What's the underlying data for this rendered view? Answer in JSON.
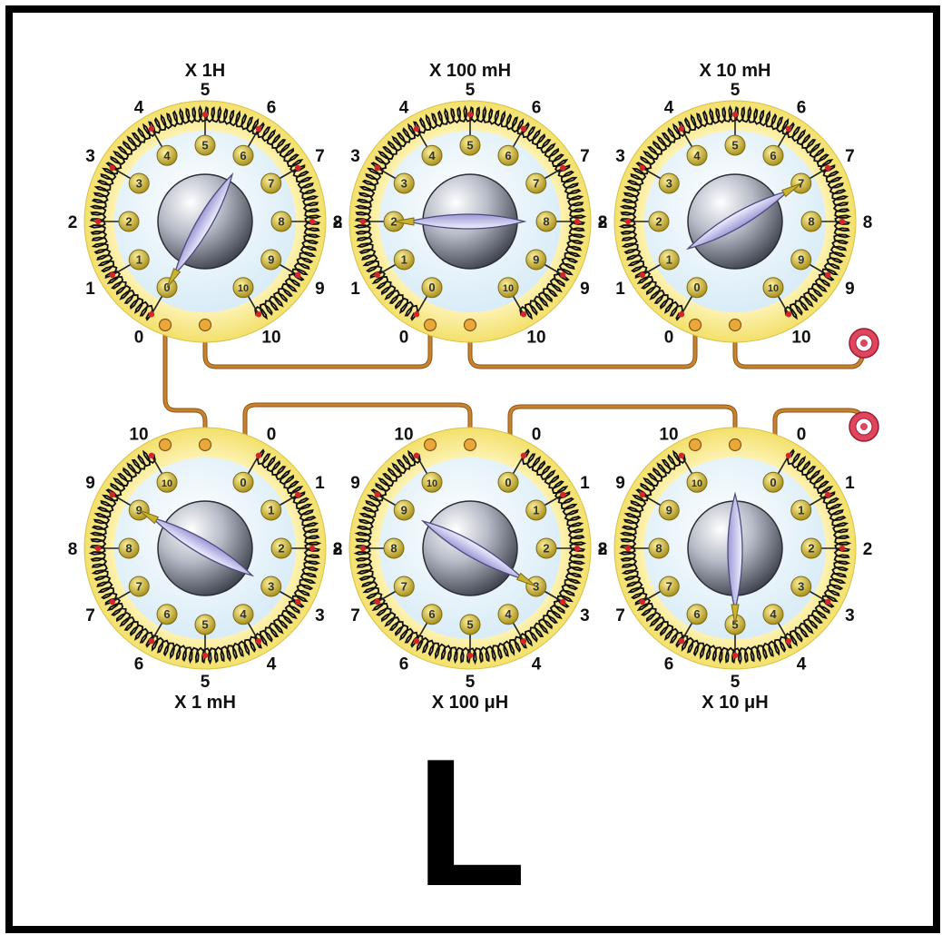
{
  "letter": "L",
  "decades": [
    {
      "label": "X 1H",
      "row": "top",
      "setting": 0
    },
    {
      "label": "X 100 mH",
      "row": "top",
      "setting": 2
    },
    {
      "label": "X 10 mH",
      "row": "top",
      "setting": 7
    },
    {
      "label": "X 1 mH",
      "row": "bottom",
      "setting": 9
    },
    {
      "label": "X 100 μH",
      "row": "bottom",
      "setting": 3
    },
    {
      "label": "X 10 μH",
      "row": "bottom",
      "setting": 5
    }
  ],
  "outer_numbers": [
    "0",
    "1",
    "2",
    "3",
    "4",
    "5",
    "6",
    "7",
    "8",
    "9",
    "10"
  ],
  "terminal_count": 2,
  "colors": {
    "wire": "#c8832c",
    "coil": "#111111",
    "ring": "#f3e06a",
    "face": "#d9ecf7",
    "contact": "#c9b331",
    "knob": "#8a8f9c",
    "pointer": "#c9c7ef",
    "terminal": "#e0455e"
  },
  "icons": [
    "rotary-decade-switch-icon",
    "terminal-binding-post-icon"
  ]
}
